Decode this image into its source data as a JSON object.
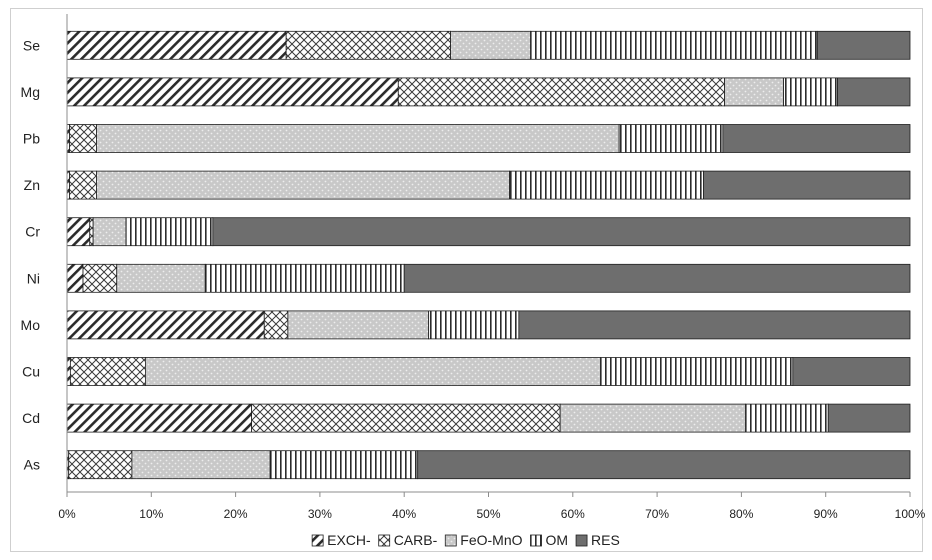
{
  "chart_data": {
    "type": "bar",
    "orientation": "horizontal",
    "stacked": true,
    "percent": true,
    "title": "",
    "xlabel": "",
    "ylabel": "",
    "xlim": [
      0,
      100
    ],
    "x_ticks": [
      "0%",
      "10%",
      "20%",
      "30%",
      "40%",
      "50%",
      "60%",
      "70%",
      "80%",
      "90%",
      "100%"
    ],
    "grid": false,
    "legend_position": "bottom",
    "categories": [
      "Se",
      "Mg",
      "Pb",
      "Zn",
      "Cr",
      "Ni",
      "Mo",
      "Cu",
      "Cd",
      "As"
    ],
    "series": [
      {
        "name": "EXCH-",
        "pattern": "diagonal-hatch",
        "color": "#2b2b2b",
        "values": [
          26.0,
          39.3,
          0.3,
          0.3,
          2.7,
          1.9,
          23.4,
          0.4,
          21.9,
          0.2
        ]
      },
      {
        "name": "CARB-",
        "pattern": "crosshatch",
        "color": "#2b2b2b",
        "values": [
          19.5,
          38.7,
          3.2,
          3.2,
          0.4,
          4.0,
          2.8,
          8.9,
          36.6,
          7.5
        ]
      },
      {
        "name": "FeO-MnO",
        "pattern": "dotted-gray",
        "color": "#c6c6c6",
        "values": [
          9.5,
          7.0,
          62.0,
          49.0,
          3.9,
          10.5,
          16.7,
          54.0,
          22.0,
          16.4
        ]
      },
      {
        "name": "OM",
        "pattern": "vertical-lines",
        "color": "#2b2b2b",
        "values": [
          34.0,
          6.4,
          12.3,
          23.0,
          10.3,
          23.6,
          10.7,
          22.8,
          9.8,
          17.5
        ]
      },
      {
        "name": "RES",
        "pattern": "solid",
        "color": "#6e6e6e",
        "values": [
          11.0,
          8.6,
          22.2,
          24.5,
          82.7,
          60.0,
          46.4,
          13.9,
          9.7,
          58.4
        ]
      }
    ]
  }
}
